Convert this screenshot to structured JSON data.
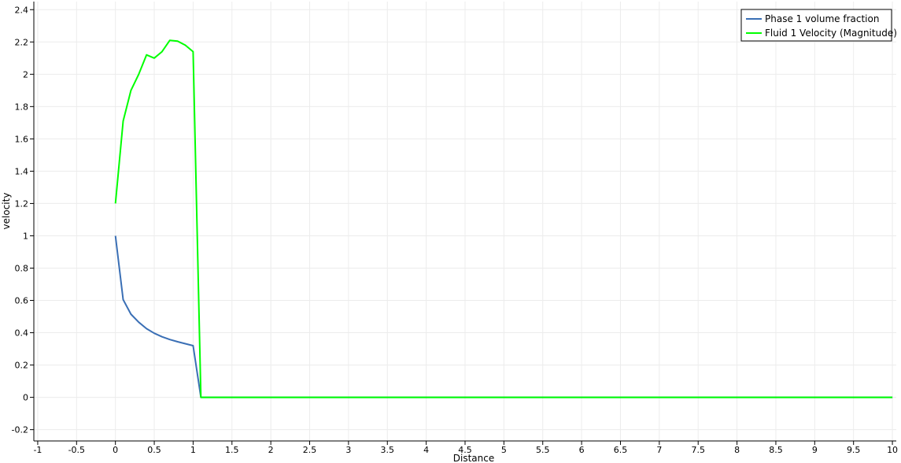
{
  "chart_data": {
    "type": "line",
    "xlabel": "Distance",
    "ylabel": "velocity",
    "xlim": [
      -1.05,
      10.05
    ],
    "ylim": [
      -0.27,
      2.45
    ],
    "x_ticks": [
      -1,
      -0.5,
      0,
      0.5,
      1,
      1.5,
      2,
      2.5,
      3,
      3.5,
      4,
      4.5,
      5,
      5.5,
      6,
      6.5,
      7,
      7.5,
      8,
      8.5,
      9,
      9.5,
      10
    ],
    "x_tick_labels": [
      "-1",
      "-0.5",
      "0",
      "0.5",
      "1",
      "1.5",
      "2",
      "2.5",
      "3",
      "3.5",
      "4",
      "4.5",
      "5",
      "5.5",
      "6",
      "6.5",
      "7",
      "7.5",
      "8",
      "8.5",
      "9",
      "9.5",
      "10"
    ],
    "y_ticks": [
      -0.2,
      0,
      0.2,
      0.4,
      0.6,
      0.8,
      1,
      1.2,
      1.4,
      1.6,
      1.8,
      2,
      2.2,
      2.4
    ],
    "y_tick_labels": [
      "-0.2",
      "0",
      "0.2",
      "0.4",
      "0.6",
      "0.8",
      "1",
      "1.2",
      "1.4",
      "1.6",
      "1.8",
      "2",
      "2.2",
      "2.4"
    ],
    "grid": true,
    "legend_position": "top-right",
    "series": [
      {
        "name": "Phase 1 volume fraction",
        "color": "#3a6fb5",
        "x": [
          0,
          0.1,
          0.2,
          0.3,
          0.4,
          0.5,
          0.6,
          0.7,
          0.8,
          0.9,
          1.0,
          1.1,
          10
        ],
        "y": [
          1.0,
          0.605,
          0.515,
          0.465,
          0.425,
          0.397,
          0.375,
          0.358,
          0.344,
          0.332,
          0.32,
          0.0,
          0.0
        ]
      },
      {
        "name": "Fluid 1 Velocity (Magnitude)",
        "color": "#00ff00",
        "x": [
          0,
          0.1,
          0.2,
          0.3,
          0.4,
          0.5,
          0.6,
          0.7,
          0.8,
          0.9,
          1.0,
          1.1,
          10
        ],
        "y": [
          1.2,
          1.71,
          1.9,
          2.0,
          2.12,
          2.1,
          2.14,
          2.21,
          2.205,
          2.18,
          2.14,
          0.0,
          0.0
        ]
      }
    ]
  }
}
